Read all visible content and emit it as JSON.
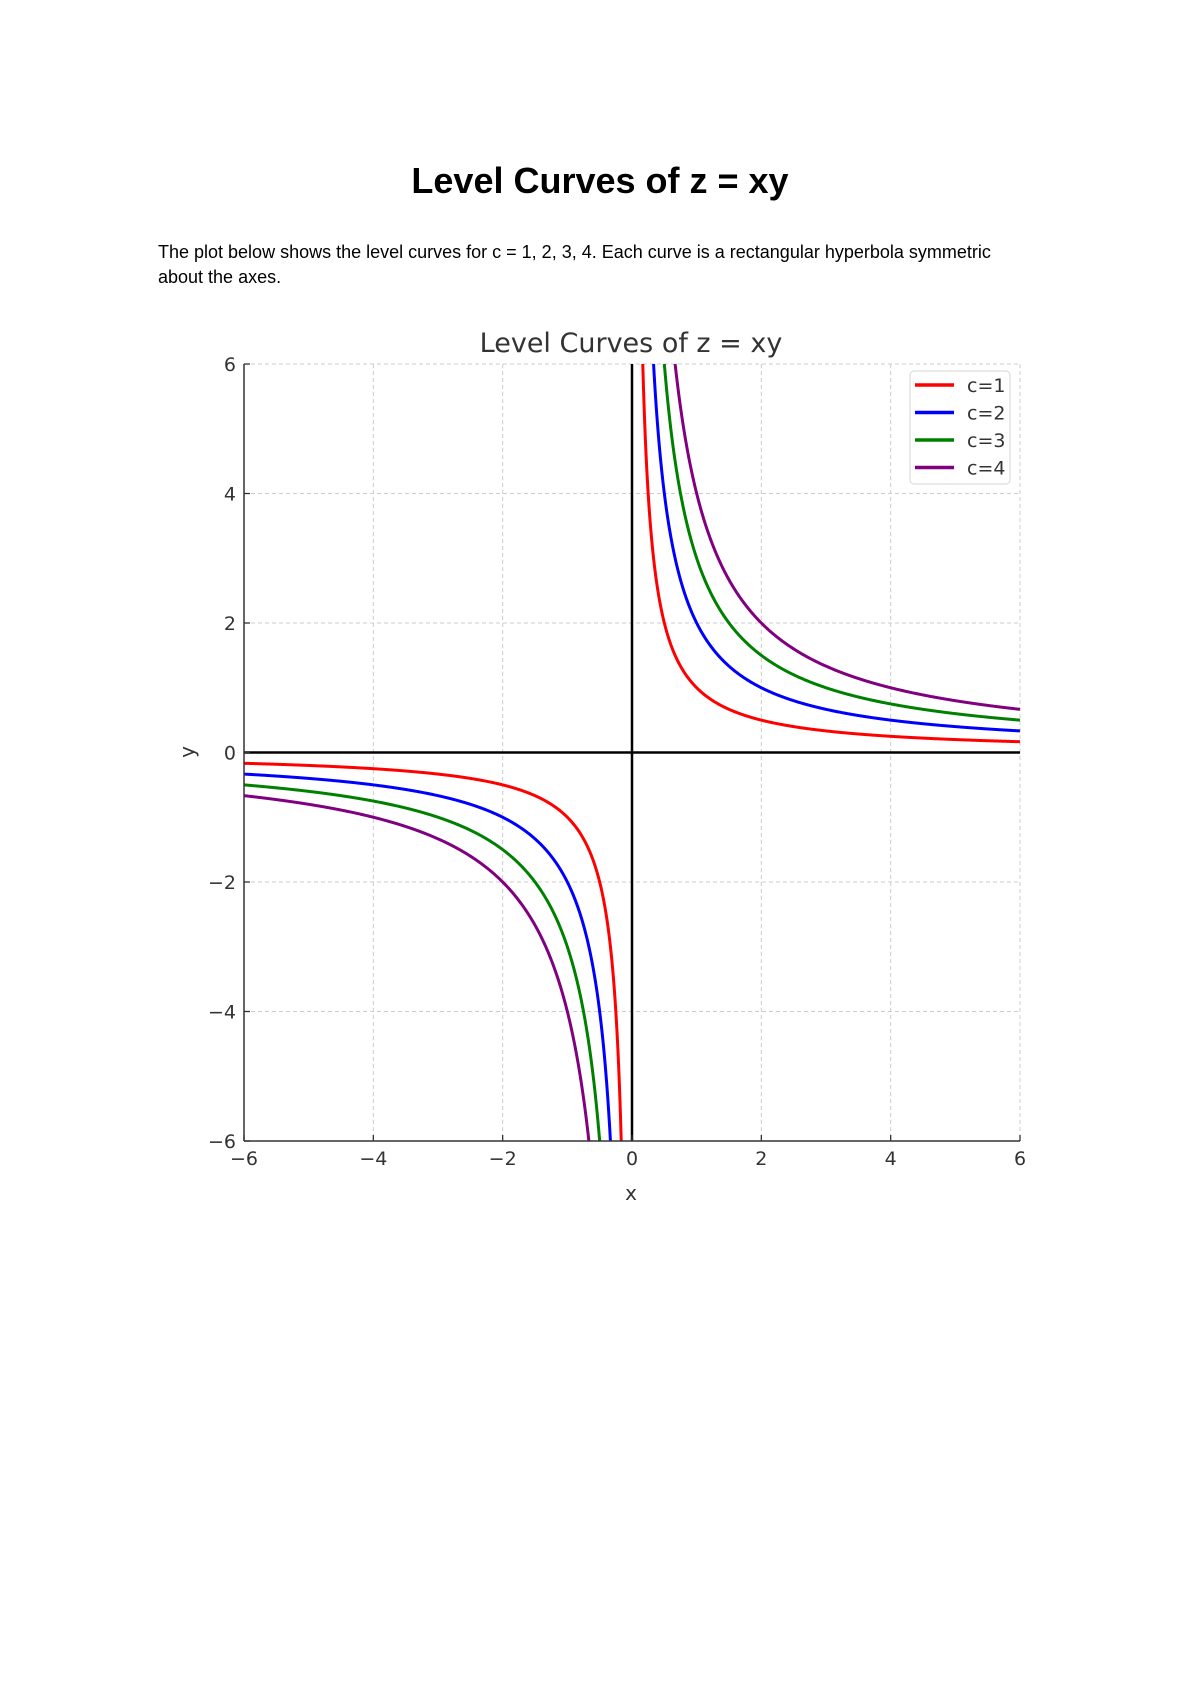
{
  "document": {
    "title": "Level Curves of z = xy",
    "paragraph": "The plot below shows the level curves for c = 1, 2, 3, 4. Each curve is a rectangular hyperbola symmetric about the axes."
  },
  "chart_data": {
    "type": "line",
    "title": "Level Curves of z = xy",
    "xlabel": "x",
    "ylabel": "y",
    "xlim": [
      -6,
      6
    ],
    "ylim": [
      -6,
      6
    ],
    "xticks": [
      -6,
      -4,
      -2,
      0,
      2,
      4,
      6
    ],
    "yticks": [
      -6,
      -4,
      -2,
      0,
      2,
      4,
      6
    ],
    "grid": true,
    "legend_position": "top-right",
    "function": "y = c / x",
    "series": [
      {
        "name": "c=1",
        "c": 1,
        "color": "#ff0000"
      },
      {
        "name": "c=2",
        "c": 2,
        "color": "#0000ff"
      },
      {
        "name": "c=3",
        "c": 3,
        "color": "#008000"
      },
      {
        "name": "c=4",
        "c": 4,
        "color": "#800080"
      }
    ]
  }
}
